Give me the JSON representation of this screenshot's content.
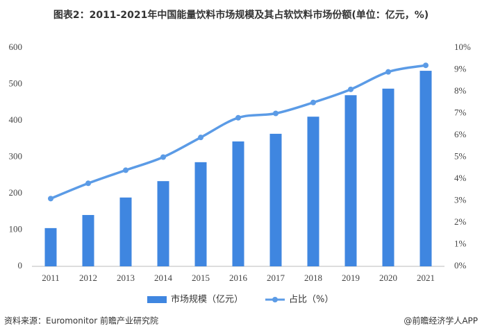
{
  "chart_data": {
    "type": "bar",
    "title": "图表2：2011-2021年中国能量饮料市场规模及其占软饮料市场份额(单位：亿元，%)",
    "categories": [
      "2011",
      "2012",
      "2013",
      "2014",
      "2015",
      "2016",
      "2017",
      "2018",
      "2019",
      "2020",
      "2021"
    ],
    "series": [
      {
        "name": "市场规模（亿元）",
        "type": "bar",
        "color": "#3f86e0",
        "values": [
          105,
          141,
          189,
          234,
          286,
          343,
          364,
          411,
          470,
          488,
          537
        ]
      },
      {
        "name": "占比（%）",
        "type": "line",
        "axis": "y2",
        "color": "#5b9be6",
        "values": [
          3.1,
          3.8,
          4.4,
          5.0,
          5.9,
          6.8,
          7.0,
          7.5,
          8.1,
          8.9,
          9.2
        ]
      }
    ],
    "ylim": [
      0,
      600
    ],
    "yticks": [
      0,
      100,
      200,
      300,
      400,
      500,
      600
    ],
    "y2lim": [
      0,
      10
    ],
    "y2ticks": [
      {
        "value": 0,
        "label": "0%"
      },
      {
        "value": 1,
        "label": "1%"
      },
      {
        "value": 2,
        "label": "2%"
      },
      {
        "value": 3,
        "label": "3%"
      },
      {
        "value": 4,
        "label": "4%"
      },
      {
        "value": 5,
        "label": "5%"
      },
      {
        "value": 6,
        "label": "6%"
      },
      {
        "value": 7,
        "label": "7%"
      },
      {
        "value": 8,
        "label": "8%"
      },
      {
        "value": 9,
        "label": "9%"
      },
      {
        "value": 10,
        "label": "10%"
      }
    ],
    "grid": false,
    "legend": "bottom",
    "source": "资料来源：Euromonitor 前瞻产业研究院",
    "credit": "@前瞻经济学人APP"
  }
}
